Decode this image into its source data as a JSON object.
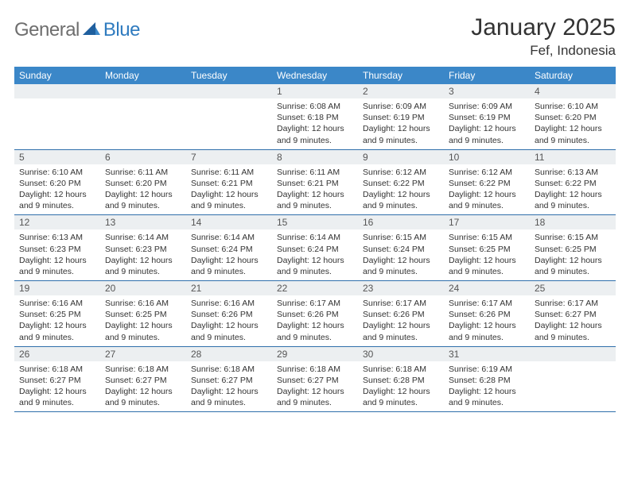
{
  "logo": {
    "general": "General",
    "blue": "Blue"
  },
  "title": "January 2025",
  "location": "Fef, Indonesia",
  "colors": {
    "header_bg": "#3b87c8",
    "header_text": "#ffffff",
    "daynum_bg": "#eceff1",
    "rule": "#2f6fab",
    "logo_gray": "#6e6e6e",
    "logo_blue": "#2f7bbf"
  },
  "weekdays": [
    "Sunday",
    "Monday",
    "Tuesday",
    "Wednesday",
    "Thursday",
    "Friday",
    "Saturday"
  ],
  "weeks": [
    [
      {
        "day": "",
        "sunrise": "",
        "sunset": "",
        "daylight": ""
      },
      {
        "day": "",
        "sunrise": "",
        "sunset": "",
        "daylight": ""
      },
      {
        "day": "",
        "sunrise": "",
        "sunset": "",
        "daylight": ""
      },
      {
        "day": "1",
        "sunrise": "Sunrise: 6:08 AM",
        "sunset": "Sunset: 6:18 PM",
        "daylight": "Daylight: 12 hours and 9 minutes."
      },
      {
        "day": "2",
        "sunrise": "Sunrise: 6:09 AM",
        "sunset": "Sunset: 6:19 PM",
        "daylight": "Daylight: 12 hours and 9 minutes."
      },
      {
        "day": "3",
        "sunrise": "Sunrise: 6:09 AM",
        "sunset": "Sunset: 6:19 PM",
        "daylight": "Daylight: 12 hours and 9 minutes."
      },
      {
        "day": "4",
        "sunrise": "Sunrise: 6:10 AM",
        "sunset": "Sunset: 6:20 PM",
        "daylight": "Daylight: 12 hours and 9 minutes."
      }
    ],
    [
      {
        "day": "5",
        "sunrise": "Sunrise: 6:10 AM",
        "sunset": "Sunset: 6:20 PM",
        "daylight": "Daylight: 12 hours and 9 minutes."
      },
      {
        "day": "6",
        "sunrise": "Sunrise: 6:11 AM",
        "sunset": "Sunset: 6:20 PM",
        "daylight": "Daylight: 12 hours and 9 minutes."
      },
      {
        "day": "7",
        "sunrise": "Sunrise: 6:11 AM",
        "sunset": "Sunset: 6:21 PM",
        "daylight": "Daylight: 12 hours and 9 minutes."
      },
      {
        "day": "8",
        "sunrise": "Sunrise: 6:11 AM",
        "sunset": "Sunset: 6:21 PM",
        "daylight": "Daylight: 12 hours and 9 minutes."
      },
      {
        "day": "9",
        "sunrise": "Sunrise: 6:12 AM",
        "sunset": "Sunset: 6:22 PM",
        "daylight": "Daylight: 12 hours and 9 minutes."
      },
      {
        "day": "10",
        "sunrise": "Sunrise: 6:12 AM",
        "sunset": "Sunset: 6:22 PM",
        "daylight": "Daylight: 12 hours and 9 minutes."
      },
      {
        "day": "11",
        "sunrise": "Sunrise: 6:13 AM",
        "sunset": "Sunset: 6:22 PM",
        "daylight": "Daylight: 12 hours and 9 minutes."
      }
    ],
    [
      {
        "day": "12",
        "sunrise": "Sunrise: 6:13 AM",
        "sunset": "Sunset: 6:23 PM",
        "daylight": "Daylight: 12 hours and 9 minutes."
      },
      {
        "day": "13",
        "sunrise": "Sunrise: 6:14 AM",
        "sunset": "Sunset: 6:23 PM",
        "daylight": "Daylight: 12 hours and 9 minutes."
      },
      {
        "day": "14",
        "sunrise": "Sunrise: 6:14 AM",
        "sunset": "Sunset: 6:24 PM",
        "daylight": "Daylight: 12 hours and 9 minutes."
      },
      {
        "day": "15",
        "sunrise": "Sunrise: 6:14 AM",
        "sunset": "Sunset: 6:24 PM",
        "daylight": "Daylight: 12 hours and 9 minutes."
      },
      {
        "day": "16",
        "sunrise": "Sunrise: 6:15 AM",
        "sunset": "Sunset: 6:24 PM",
        "daylight": "Daylight: 12 hours and 9 minutes."
      },
      {
        "day": "17",
        "sunrise": "Sunrise: 6:15 AM",
        "sunset": "Sunset: 6:25 PM",
        "daylight": "Daylight: 12 hours and 9 minutes."
      },
      {
        "day": "18",
        "sunrise": "Sunrise: 6:15 AM",
        "sunset": "Sunset: 6:25 PM",
        "daylight": "Daylight: 12 hours and 9 minutes."
      }
    ],
    [
      {
        "day": "19",
        "sunrise": "Sunrise: 6:16 AM",
        "sunset": "Sunset: 6:25 PM",
        "daylight": "Daylight: 12 hours and 9 minutes."
      },
      {
        "day": "20",
        "sunrise": "Sunrise: 6:16 AM",
        "sunset": "Sunset: 6:25 PM",
        "daylight": "Daylight: 12 hours and 9 minutes."
      },
      {
        "day": "21",
        "sunrise": "Sunrise: 6:16 AM",
        "sunset": "Sunset: 6:26 PM",
        "daylight": "Daylight: 12 hours and 9 minutes."
      },
      {
        "day": "22",
        "sunrise": "Sunrise: 6:17 AM",
        "sunset": "Sunset: 6:26 PM",
        "daylight": "Daylight: 12 hours and 9 minutes."
      },
      {
        "day": "23",
        "sunrise": "Sunrise: 6:17 AM",
        "sunset": "Sunset: 6:26 PM",
        "daylight": "Daylight: 12 hours and 9 minutes."
      },
      {
        "day": "24",
        "sunrise": "Sunrise: 6:17 AM",
        "sunset": "Sunset: 6:26 PM",
        "daylight": "Daylight: 12 hours and 9 minutes."
      },
      {
        "day": "25",
        "sunrise": "Sunrise: 6:17 AM",
        "sunset": "Sunset: 6:27 PM",
        "daylight": "Daylight: 12 hours and 9 minutes."
      }
    ],
    [
      {
        "day": "26",
        "sunrise": "Sunrise: 6:18 AM",
        "sunset": "Sunset: 6:27 PM",
        "daylight": "Daylight: 12 hours and 9 minutes."
      },
      {
        "day": "27",
        "sunrise": "Sunrise: 6:18 AM",
        "sunset": "Sunset: 6:27 PM",
        "daylight": "Daylight: 12 hours and 9 minutes."
      },
      {
        "day": "28",
        "sunrise": "Sunrise: 6:18 AM",
        "sunset": "Sunset: 6:27 PM",
        "daylight": "Daylight: 12 hours and 9 minutes."
      },
      {
        "day": "29",
        "sunrise": "Sunrise: 6:18 AM",
        "sunset": "Sunset: 6:27 PM",
        "daylight": "Daylight: 12 hours and 9 minutes."
      },
      {
        "day": "30",
        "sunrise": "Sunrise: 6:18 AM",
        "sunset": "Sunset: 6:28 PM",
        "daylight": "Daylight: 12 hours and 9 minutes."
      },
      {
        "day": "31",
        "sunrise": "Sunrise: 6:19 AM",
        "sunset": "Sunset: 6:28 PM",
        "daylight": "Daylight: 12 hours and 9 minutes."
      },
      {
        "day": "",
        "sunrise": "",
        "sunset": "",
        "daylight": ""
      }
    ]
  ]
}
